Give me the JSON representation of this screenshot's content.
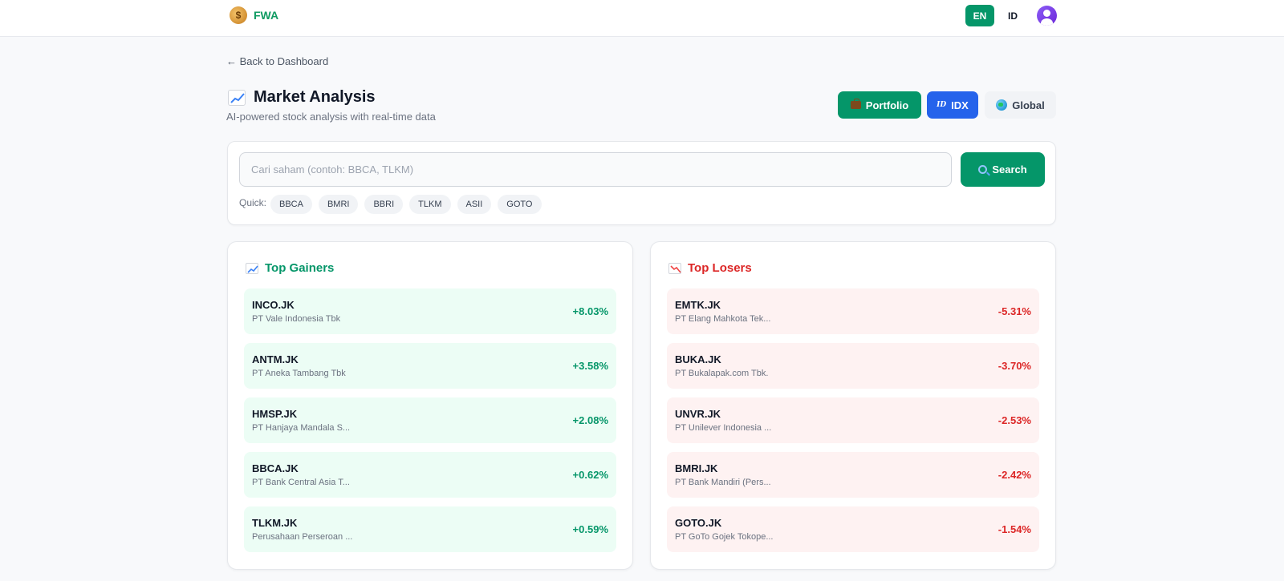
{
  "header": {
    "brand": "FWA",
    "lang_en": "EN",
    "lang_id": "ID"
  },
  "nav": {
    "back": "← Back to Dashboard"
  },
  "page": {
    "title": "Market Analysis",
    "subtitle": "AI-powered stock analysis with real-time data"
  },
  "market_buttons": {
    "portfolio": "Portfolio",
    "idx": "IDX",
    "idx_icon": "ID",
    "global": "Global"
  },
  "search": {
    "placeholder": "Cari saham (contoh: BBCA, TLKM)",
    "button": "Search",
    "quick_label": "Quick:",
    "quick": [
      "BBCA",
      "BMRI",
      "BBRI",
      "TLKM",
      "ASII",
      "GOTO"
    ]
  },
  "gainers": {
    "title": "Top Gainers",
    "items": [
      {
        "ticker": "INCO.JK",
        "name": "PT Vale Indonesia Tbk",
        "change": "+8.03%"
      },
      {
        "ticker": "ANTM.JK",
        "name": "PT Aneka Tambang Tbk",
        "change": "+3.58%"
      },
      {
        "ticker": "HMSP.JK",
        "name": "PT Hanjaya Mandala S...",
        "change": "+2.08%"
      },
      {
        "ticker": "BBCA.JK",
        "name": "PT Bank Central Asia T...",
        "change": "+0.62%"
      },
      {
        "ticker": "TLKM.JK",
        "name": "Perusahaan Perseroan ...",
        "change": "+0.59%"
      }
    ]
  },
  "losers": {
    "title": "Top Losers",
    "items": [
      {
        "ticker": "EMTK.JK",
        "name": "PT Elang Mahkota Tek...",
        "change": "-5.31%"
      },
      {
        "ticker": "BUKA.JK",
        "name": "PT Bukalapak.com Tbk.",
        "change": "-3.70%"
      },
      {
        "ticker": "UNVR.JK",
        "name": "PT Unilever Indonesia ...",
        "change": "-2.53%"
      },
      {
        "ticker": "BMRI.JK",
        "name": "PT Bank Mandiri (Pers...",
        "change": "-2.42%"
      },
      {
        "ticker": "GOTO.JK",
        "name": "PT GoTo Gojek Tokope...",
        "change": "-1.54%"
      }
    ]
  },
  "colors": {
    "primary_green": "#059669",
    "idx_blue": "#2563eb",
    "loss_red": "#dc2626"
  }
}
